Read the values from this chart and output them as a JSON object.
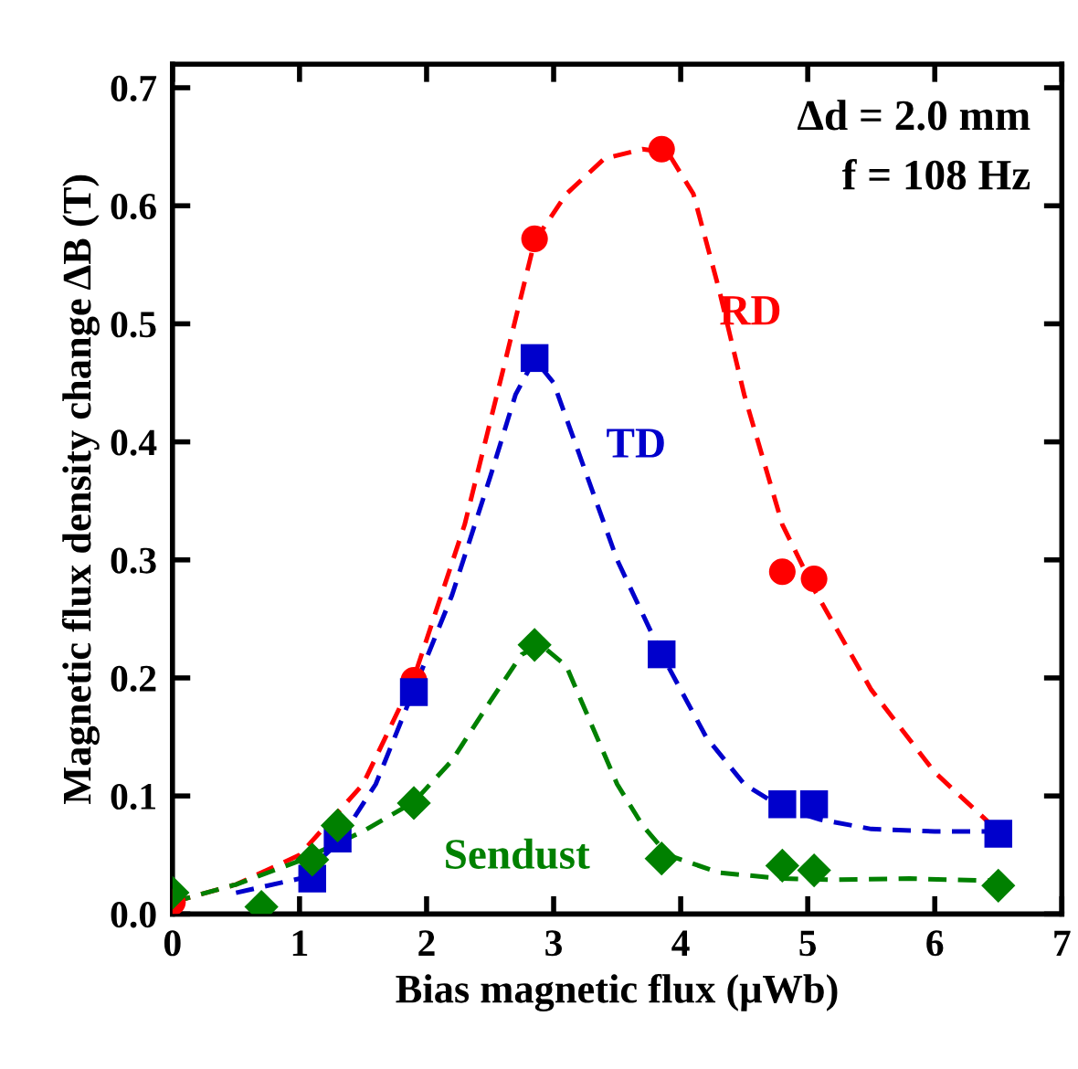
{
  "chart_data": {
    "type": "scatter",
    "xlabel": "Bias magnetic flux (μWb)",
    "ylabel": "Magnetic flux density change ΔB (T)",
    "xlim": [
      0,
      7
    ],
    "xticks": [
      0,
      1,
      2,
      3,
      4,
      5,
      6,
      7
    ],
    "ylim": [
      0,
      0.72
    ],
    "yticks": [
      {
        "value": 0,
        "label": "0.0"
      },
      0.1,
      0.2,
      0.3,
      0.4,
      0.5,
      0.6,
      0.7
    ],
    "grid": false,
    "series": [
      {
        "type": "line",
        "color": "#ff0000",
        "line_style": "dashed",
        "marker": "none",
        "x": [
          0,
          0.5,
          1,
          1.5,
          1.9,
          2.3,
          2.6,
          2.85,
          3.1,
          3.4,
          3.7,
          3.9,
          4.1,
          4.3,
          4.5,
          4.8,
          5.05,
          5.5,
          6,
          6.5
        ],
        "values": [
          0.01,
          0.025,
          0.05,
          0.11,
          0.2,
          0.33,
          0.46,
          0.57,
          0.61,
          0.64,
          0.648,
          0.645,
          0.61,
          0.53,
          0.44,
          0.33,
          0.275,
          0.19,
          0.12,
          0.07
        ]
      },
      {
        "type": "line",
        "color": "#0000cc",
        "line_style": "dashed",
        "marker": "none",
        "x": [
          0.5,
          1,
          1.3,
          1.6,
          1.9,
          2.2,
          2.5,
          2.7,
          2.85,
          3.0,
          3.2,
          3.5,
          3.85,
          4.2,
          4.5,
          4.8,
          5.1,
          5.5,
          6,
          6.5
        ],
        "values": [
          0.018,
          0.03,
          0.06,
          0.11,
          0.19,
          0.27,
          0.37,
          0.44,
          0.47,
          0.45,
          0.39,
          0.3,
          0.22,
          0.15,
          0.11,
          0.09,
          0.08,
          0.072,
          0.07,
          0.07
        ]
      },
      {
        "type": "line",
        "color": "#008000",
        "line_style": "dashed",
        "marker": "none",
        "x": [
          0,
          0.5,
          1,
          1.5,
          1.9,
          2.2,
          2.5,
          2.75,
          2.9,
          3.1,
          3.3,
          3.5,
          3.7,
          3.9,
          4.3,
          4.8,
          5.2,
          5.8,
          6.5
        ],
        "values": [
          0.01,
          0.025,
          0.045,
          0.07,
          0.095,
          0.13,
          0.18,
          0.22,
          0.228,
          0.21,
          0.16,
          0.11,
          0.075,
          0.05,
          0.035,
          0.03,
          0.029,
          0.03,
          0.028
        ]
      },
      {
        "name": "RD",
        "color": "#ff0000",
        "marker": "circle",
        "x": [
          0,
          1.9,
          2.85,
          3.85,
          4.8,
          5.05
        ],
        "values": [
          0.01,
          0.198,
          0.572,
          0.648,
          0.29,
          0.284
        ]
      },
      {
        "name": "TD",
        "color": "#0000cc",
        "marker": "square",
        "x": [
          1.1,
          1.3,
          1.9,
          2.85,
          3.85,
          4.8,
          5.05,
          6.5
        ],
        "values": [
          0.03,
          0.064,
          0.188,
          0.471,
          0.22,
          0.093,
          0.093,
          0.068
        ]
      },
      {
        "name": "Sendust",
        "color": "#008000",
        "marker": "diamond",
        "x": [
          0,
          0.7,
          1.1,
          1.3,
          1.9,
          2.85,
          3.85,
          4.8,
          5.05,
          6.5
        ],
        "values": [
          0.018,
          0.006,
          0.046,
          0.075,
          0.094,
          0.228,
          0.047,
          0.041,
          0.037,
          0.024
        ]
      }
    ],
    "annotations": [
      "Δd = 2.0 mm",
      "f = 108 Hz"
    ]
  }
}
